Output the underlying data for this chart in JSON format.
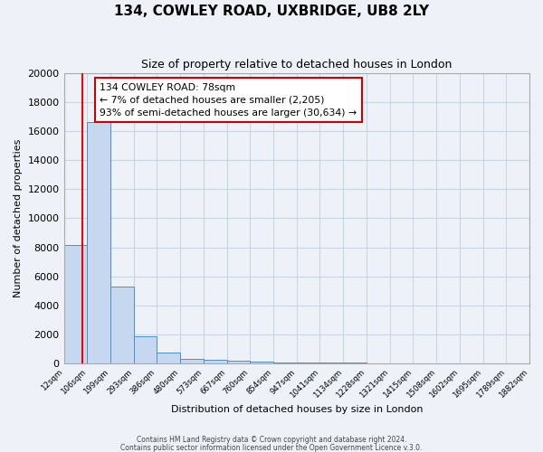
{
  "title": "134, COWLEY ROAD, UXBRIDGE, UB8 2LY",
  "subtitle": "Size of property relative to detached houses in London",
  "xlabel": "Distribution of detached houses by size in London",
  "ylabel": "Number of detached properties",
  "bar_values": [
    8150,
    16600,
    5300,
    1850,
    750,
    300,
    250,
    200,
    150,
    100,
    80,
    60,
    50,
    40,
    30,
    25,
    20,
    15,
    10,
    10
  ],
  "bin_labels": [
    "12sqm",
    "106sqm",
    "199sqm",
    "293sqm",
    "386sqm",
    "480sqm",
    "573sqm",
    "667sqm",
    "760sqm",
    "854sqm",
    "947sqm",
    "1041sqm",
    "1134sqm",
    "1228sqm",
    "1321sqm",
    "1415sqm",
    "1508sqm",
    "1602sqm",
    "1695sqm",
    "1789sqm",
    "1882sqm"
  ],
  "bar_color": "#c5d8f0",
  "bar_edge_color": "#4a90c4",
  "red_line_x": 0.78,
  "ylim": [
    0,
    20000
  ],
  "yticks": [
    0,
    2000,
    4000,
    6000,
    8000,
    10000,
    12000,
    14000,
    16000,
    18000,
    20000
  ],
  "annotation_text_line1": "134 COWLEY ROAD: 78sqm",
  "annotation_text_line2": "← 7% of detached houses are smaller (2,205)",
  "annotation_text_line3": "93% of semi-detached houses are larger (30,634) →",
  "footer_line1": "Contains HM Land Registry data © Crown copyright and database right 2024.",
  "footer_line2": "Contains public sector information licensed under the Open Government Licence v.3.0.",
  "bg_color": "#eef2f8",
  "grid_color": "#c8d4e8"
}
